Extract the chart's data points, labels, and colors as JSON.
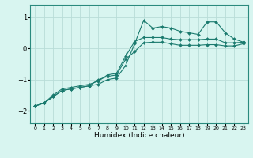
{
  "xlabel": "Humidex (Indice chaleur)",
  "ylabel": "",
  "background_color": "#d8f5f0",
  "grid_color": "#b8ddd8",
  "line_color": "#1a7a6e",
  "marker_color": "#1a7a6e",
  "xlim": [
    -0.5,
    23.5
  ],
  "ylim": [
    -2.4,
    1.4
  ],
  "yticks": [
    -2,
    -1,
    0,
    1
  ],
  "xtick_labels": [
    "0",
    "1",
    "2",
    "3",
    "4",
    "5",
    "6",
    "7",
    "8",
    "9",
    "10",
    "11",
    "12",
    "13",
    "14",
    "15",
    "16",
    "17",
    "18",
    "19",
    "20",
    "21",
    "22",
    "23"
  ],
  "series": [
    {
      "x": [
        0,
        1,
        2,
        3,
        4,
        5,
        6,
        7,
        8,
        9,
        10,
        11,
        12,
        13,
        14,
        15,
        16,
        17,
        18,
        19,
        20,
        21,
        22,
        23
      ],
      "y": [
        -1.85,
        -1.75,
        -1.55,
        -1.35,
        -1.3,
        -1.25,
        -1.2,
        -1.15,
        -1.0,
        -0.95,
        -0.55,
        0.15,
        0.9,
        0.65,
        0.7,
        0.65,
        0.55,
        0.5,
        0.45,
        0.85,
        0.85,
        0.5,
        0.3,
        0.2
      ]
    },
    {
      "x": [
        0,
        1,
        2,
        3,
        4,
        5,
        6,
        7,
        8,
        9,
        10,
        11,
        12,
        13,
        14,
        15,
        16,
        17,
        18,
        19,
        20,
        21,
        22,
        23
      ],
      "y": [
        -1.85,
        -1.75,
        -1.55,
        -1.35,
        -1.3,
        -1.25,
        -1.2,
        -1.0,
        -0.9,
        -0.85,
        -0.35,
        -0.1,
        0.18,
        0.2,
        0.2,
        0.15,
        0.1,
        0.1,
        0.1,
        0.12,
        0.12,
        0.08,
        0.08,
        0.15
      ]
    },
    {
      "x": [
        0,
        1,
        2,
        3,
        4,
        5,
        6,
        7,
        8,
        9,
        10,
        11,
        12,
        13,
        14,
        15,
        16,
        17,
        18,
        19,
        20,
        21,
        22,
        23
      ],
      "y": [
        -1.85,
        -1.75,
        -1.5,
        -1.3,
        -1.25,
        -1.2,
        -1.15,
        -1.05,
        -0.85,
        -0.8,
        -0.25,
        0.22,
        0.35,
        0.35,
        0.35,
        0.3,
        0.28,
        0.28,
        0.28,
        0.3,
        0.3,
        0.18,
        0.18,
        0.2
      ]
    }
  ]
}
